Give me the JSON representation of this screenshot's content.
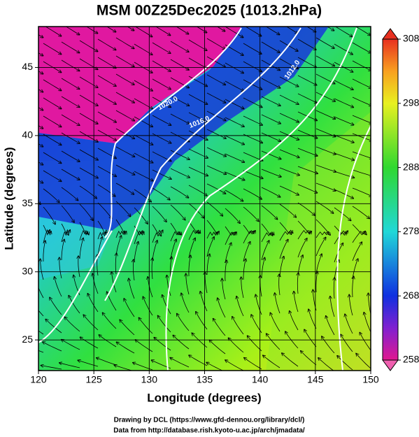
{
  "chart_data": {
    "type": "map",
    "title": "MSM 00Z25Dec2025 (1013.2hPa)",
    "x_label": "Longitude (degrees)",
    "y_label": "Latitude  (degrees)",
    "xlim": [
      120,
      150
    ],
    "xticks": [
      120,
      125,
      130,
      135,
      140,
      145,
      150
    ],
    "ylim": [
      22.75,
      48
    ],
    "yticks": [
      25,
      30,
      35,
      40,
      45
    ],
    "grid": true,
    "colorbar": {
      "lim": [
        258,
        308
      ],
      "ticks": [
        258,
        268,
        278,
        288,
        298,
        308
      ]
    },
    "annotations": [
      "1020.0",
      "1016.0",
      "1012.0"
    ],
    "footer": [
      "Drawing by DCL (https://www.gfd-dennou.org/library/dcl/)",
      "Data from http://database.rish.kyoto-u.ac.jp/arch/jmadata/"
    ]
  }
}
